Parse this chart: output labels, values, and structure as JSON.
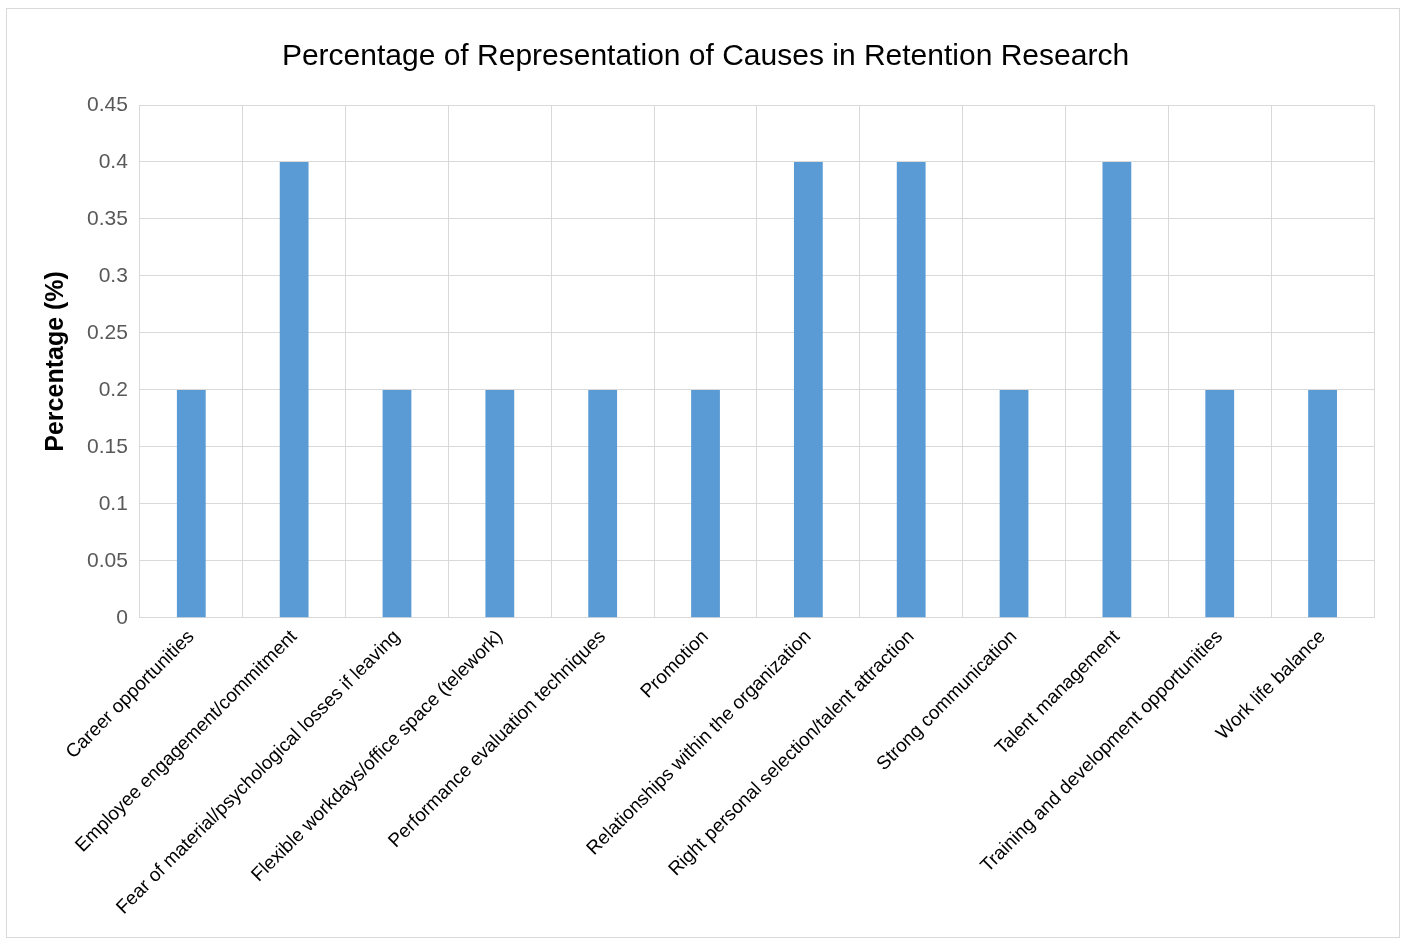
{
  "chart_data": {
    "type": "bar",
    "title": "Percentage of Representation of Causes in Retention Research",
    "ylabel": "Percentage (%)",
    "categories": [
      "Career opportunities",
      "Employee engagement/commitment",
      "Fear of material/psychological losses if leaving",
      "Flexible workdays/office space (telework)",
      "Performance evaluation techniques",
      "Promotion",
      "Relationships within the organization",
      "Right personal selection/talent attraction",
      "Strong communication",
      "Talent management",
      "Training and development opportunities",
      "Work life balance"
    ],
    "values": [
      0.2,
      0.4,
      0.2,
      0.2,
      0.2,
      0.2,
      0.4,
      0.4,
      0.2,
      0.4,
      0.2,
      0.2
    ],
    "color": "#5b9bd5",
    "ylim": [
      0,
      0.45
    ],
    "yticks": [
      0,
      0.05,
      0.1,
      0.15,
      0.2,
      0.25,
      0.3,
      0.35,
      0.4,
      0.45
    ],
    "grid": true,
    "legend": false
  }
}
